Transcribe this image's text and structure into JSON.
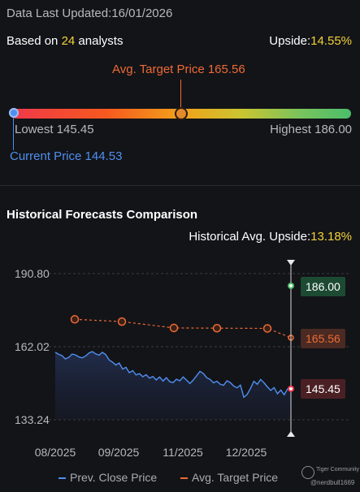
{
  "header": {
    "updated_label": "Data Last Updated:",
    "updated_date": "16/01/2026"
  },
  "summary": {
    "based_prefix": "Based on ",
    "analyst_count": "24",
    "based_suffix": " analysts",
    "upside_label": "Upside:",
    "upside_value": "14.55%"
  },
  "gauge": {
    "avg_target_label": "Avg. Target Price 165.56",
    "lowest_label": "Lowest 145.45",
    "highest_label": "Highest 186.00",
    "current_label": "Current Price 144.53",
    "lowest": 145.45,
    "highest": 186.0,
    "avg_target": 165.56,
    "current": 144.53
  },
  "history": {
    "title": "Historical Forecasts Comparison",
    "hist_upside_label": "Historical Avg. Upside:",
    "hist_upside_value": "13.18%",
    "badge_high": "186.00",
    "badge_target": "165.56",
    "badge_current": "145.45",
    "legend_price": "Prev. Close Price",
    "legend_target": "Avg. Target Price",
    "watermark_brand": "Tiger Community",
    "watermark_user": "@nerdbull1669"
  },
  "colors": {
    "accent": "#f2d13a",
    "target": "#ee6a35",
    "price": "#4f8ff0",
    "high_green": "#4bbd6a",
    "low_red": "#f0384a"
  },
  "chart_data": {
    "type": "line",
    "y_ticks": [
      "190.80",
      "162.02",
      "133.24"
    ],
    "x_ticks": [
      "08/2025",
      "09/2025",
      "11/2025",
      "12/2025"
    ],
    "ylim": [
      133.24,
      190.8
    ],
    "series": [
      {
        "name": "Prev. Close Price",
        "values": [
          159.8,
          159.0,
          158.5,
          157.2,
          157.8,
          159.1,
          158.8,
          158.0,
          157.6,
          158.3,
          159.5,
          160.1,
          159.2,
          158.7,
          159.8,
          158.9,
          156.8,
          155.9,
          154.8,
          155.6,
          153.2,
          153.9,
          151.8,
          152.6,
          150.9,
          151.4,
          150.2,
          151.0,
          149.6,
          150.3,
          148.9,
          150.1,
          148.5,
          149.8,
          148.2,
          147.9,
          149.2,
          148.6,
          150.1,
          148.8,
          147.5,
          148.9,
          150.6,
          152.3,
          151.4,
          149.8,
          149.1,
          147.8,
          148.4,
          147.2,
          146.8,
          148.6,
          147.9,
          146.5,
          145.8,
          146.9,
          142.1,
          143.2,
          145.6,
          148.4,
          147.2,
          149.1,
          147.8,
          146.2,
          144.8,
          145.9,
          143.5,
          144.9,
          143.1,
          145.4,
          146.2
        ],
        "color": "#4f8ff0"
      },
      {
        "name": "Avg. Target Price",
        "values": [
          172.8,
          171.9,
          169.4,
          169.3,
          169.2,
          165.56
        ],
        "color": "#ee6a35"
      }
    ],
    "reference_high": 186.0,
    "reference_current": 145.45
  }
}
